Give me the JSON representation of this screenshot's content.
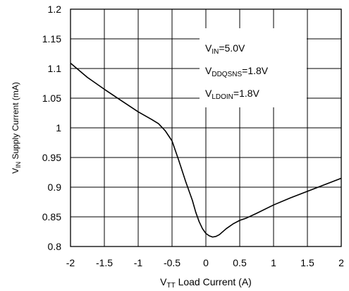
{
  "chart_data": {
    "type": "line",
    "xlabel": {
      "main": "V",
      "sub": "TT",
      "rest": " Load Current (A)"
    },
    "ylabel": {
      "main": "V",
      "sub": "IN",
      "rest": " Supply Current (mA)"
    },
    "xlim": [
      -2,
      2
    ],
    "ylim": [
      0.8,
      1.2
    ],
    "x_ticks": [
      -2,
      -1.5,
      -1,
      -0.5,
      0,
      0.5,
      1,
      1.5,
      2
    ],
    "x_tick_labels": [
      "-2",
      "-1.5",
      "-1",
      "-0.5",
      "0",
      "0.5",
      "1",
      "1.5",
      "2"
    ],
    "y_ticks": [
      0.8,
      0.85,
      0.9,
      0.95,
      1,
      1.05,
      1.1,
      1.15,
      1.2
    ],
    "y_tick_labels": [
      "0.8",
      "0.85",
      "0.9",
      "0.95",
      "1",
      "1.05",
      "1.1",
      "1.15",
      "1.2"
    ],
    "grid": true,
    "annotations": [
      {
        "main": "V",
        "sub": "IN",
        "rest": "=5.0V"
      },
      {
        "main": "V",
        "sub": "DDQSNS",
        "rest": "=1.8V"
      },
      {
        "main": "V",
        "sub": "LDOIN",
        "rest": "=1.8V"
      }
    ],
    "series": [
      {
        "color": "#000000",
        "x": [
          -2.0,
          -1.75,
          -1.5,
          -1.25,
          -1.0,
          -0.8,
          -0.7,
          -0.6,
          -0.5,
          -0.4,
          -0.3,
          -0.2,
          -0.15,
          -0.1,
          -0.05,
          0.0,
          0.05,
          0.1,
          0.15,
          0.2,
          0.3,
          0.4,
          0.5,
          0.6,
          0.75,
          1.0,
          1.25,
          1.5,
          1.75,
          2.0
        ],
        "y": [
          1.109,
          1.085,
          1.065,
          1.046,
          1.027,
          1.014,
          1.007,
          0.995,
          0.978,
          0.945,
          0.91,
          0.878,
          0.858,
          0.842,
          0.83,
          0.822,
          0.818,
          0.816,
          0.817,
          0.82,
          0.83,
          0.838,
          0.844,
          0.848,
          0.856,
          0.87,
          0.882,
          0.893,
          0.904,
          0.915
        ]
      }
    ]
  }
}
